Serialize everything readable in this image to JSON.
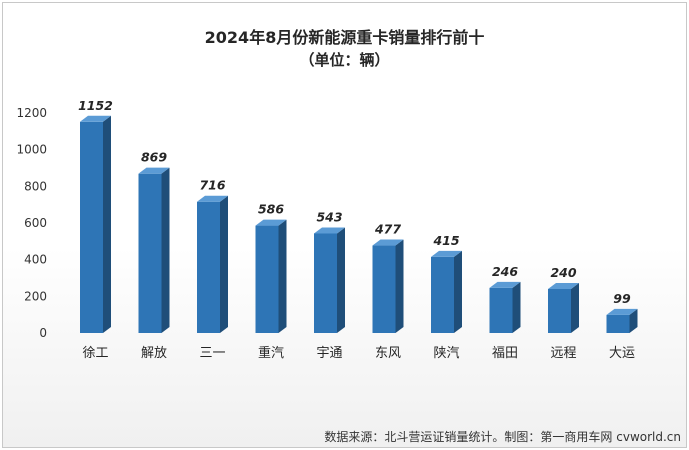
{
  "chart_data": {
    "type": "bar",
    "title": "2024年8月份新能源重卡销量排行前十",
    "subtitle": "（单位：辆）",
    "categories": [
      "徐工",
      "解放",
      "三一",
      "重汽",
      "宇通",
      "东风",
      "陕汽",
      "福田",
      "远程",
      "大运"
    ],
    "values": [
      1152,
      869,
      716,
      586,
      543,
      477,
      415,
      246,
      240,
      99
    ],
    "yticks": [
      0,
      200,
      400,
      600,
      800,
      1000,
      1200
    ],
    "ylim": [
      0,
      1200
    ],
    "grid": false,
    "legend": "none",
    "bar_color": "#2e75b6",
    "bar_side_color": "#1f4e79",
    "bar_top_color": "#5b9bd5"
  },
  "source_note": "数据来源：北斗营运证销量统计。制图：第一商用车网 cvworld.cn"
}
